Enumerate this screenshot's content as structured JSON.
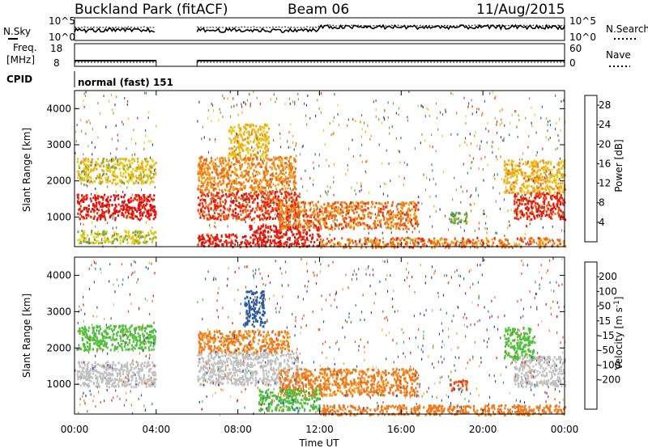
{
  "header": {
    "title": "Buckland Park (fitACF)",
    "beam": "Beam 06",
    "date": "11/Aug/2015"
  },
  "noise_panel": {
    "left_label": "N.Sky",
    "left_ticks": [
      "10^5",
      "10^0"
    ],
    "right_ticks": [
      "10^5",
      "10^0"
    ],
    "right_label": "N.Search"
  },
  "freq_panel": {
    "label_top": "Freq.",
    "label_unit": "[MHz]",
    "left_ticks": [
      "18",
      "8"
    ],
    "right_ticks": [
      "60",
      "0"
    ],
    "right_label": "Nave"
  },
  "cpid": {
    "label": "CPID",
    "value": "normal (fast) 151"
  },
  "x_axis": {
    "title": "Time UT",
    "ticks": [
      "00:00",
      "04:00",
      "08:00",
      "12:00",
      "16:00",
      "20:00",
      "00:00"
    ],
    "range_hours": [
      0,
      24
    ]
  },
  "chart_data": [
    {
      "type": "heatmap",
      "title": "",
      "ylabel": "Slant Range [km]",
      "xlabel": "",
      "y_ticks": [
        "1000",
        "2000",
        "3000",
        "4000"
      ],
      "ylim": [
        180,
        4500
      ],
      "xlim_hours": [
        0,
        24
      ],
      "data_gap_hours": [
        4.0,
        6.0
      ],
      "colorbar": {
        "label": "Power [dB]",
        "ticks": [
          "4",
          "8",
          "12",
          "16",
          "20",
          "24",
          "28"
        ],
        "range": [
          0,
          30
        ],
        "colors": [
          "#0a1bd6",
          "#24409c",
          "#2f6e8a",
          "#3f8f63",
          "#7faa3c",
          "#e8cc14",
          "#f2a31c",
          "#ef6a14",
          "#e82a10",
          "#e00d0d"
        ]
      },
      "regions": [
        {
          "t0": 0.1,
          "t1": 3.95,
          "r0": 950,
          "r1": 1650,
          "value": 28
        },
        {
          "t0": 0.1,
          "t1": 3.95,
          "r0": 1950,
          "r1": 2650,
          "value": 17
        },
        {
          "t0": 0.1,
          "t1": 3.95,
          "r0": 300,
          "r1": 650,
          "value": 15
        },
        {
          "t0": 6.0,
          "t1": 11.0,
          "r0": 950,
          "r1": 1750,
          "value": 25
        },
        {
          "t0": 6.0,
          "t1": 10.8,
          "r0": 1750,
          "r1": 2700,
          "value": 21
        },
        {
          "t0": 7.5,
          "t1": 9.5,
          "r0": 2700,
          "r1": 3600,
          "value": 18
        },
        {
          "t0": 6.0,
          "t1": 8.5,
          "r0": 200,
          "r1": 550,
          "value": 27
        },
        {
          "t0": 8.5,
          "t1": 12.0,
          "r0": 200,
          "r1": 800,
          "value": 27
        },
        {
          "t0": 10.0,
          "t1": 16.8,
          "r0": 700,
          "r1": 1450,
          "value": 22
        },
        {
          "t0": 12.0,
          "t1": 24.0,
          "r0": 180,
          "r1": 450,
          "value": 22
        },
        {
          "t0": 18.3,
          "t1": 19.2,
          "r0": 850,
          "r1": 1150,
          "value": 13
        },
        {
          "t0": 21.5,
          "t1": 24.0,
          "r0": 950,
          "r1": 1700,
          "value": 26
        },
        {
          "t0": 21.0,
          "t1": 24.0,
          "r0": 1700,
          "r1": 2600,
          "value": 19
        }
      ]
    },
    {
      "type": "heatmap",
      "title": "",
      "ylabel": "Slant Range [km]",
      "xlabel": "Time UT",
      "y_ticks": [
        "1000",
        "2000",
        "3000",
        "4000"
      ],
      "ylim": [
        180,
        4500
      ],
      "xlim_hours": [
        0,
        24
      ],
      "data_gap_hours": [
        4.0,
        6.0
      ],
      "colorbar": {
        "label": "Velocity [m s^-1]",
        "ticks": [
          "200",
          "100",
          "50",
          "15",
          "-15",
          "-50",
          "-100",
          "-200"
        ],
        "colors": [
          "#1a32c8",
          "#2c5aa0",
          "#2e8c74",
          "#52c03c",
          "#c0c0c0",
          "#c0c0c0",
          "#f0a830",
          "#f07818",
          "#ea4814",
          "#e01a10"
        ]
      },
      "regions": [
        {
          "t0": 0.1,
          "t1": 3.95,
          "r0": 950,
          "r1": 1650,
          "value": 0
        },
        {
          "t0": 0.1,
          "t1": 3.95,
          "r0": 1950,
          "r1": 2650,
          "value": 30
        },
        {
          "t0": 6.0,
          "t1": 11.0,
          "r0": 1000,
          "r1": 1900,
          "value": 0
        },
        {
          "t0": 6.0,
          "t1": 10.5,
          "r0": 1900,
          "r1": 2500,
          "value": -60
        },
        {
          "t0": 8.3,
          "t1": 9.3,
          "r0": 2600,
          "r1": 3600,
          "value": 150
        },
        {
          "t0": 10.0,
          "t1": 16.8,
          "r0": 700,
          "r1": 1450,
          "value": -60
        },
        {
          "t0": 9.0,
          "t1": 12.0,
          "r0": 300,
          "r1": 900,
          "value": 40
        },
        {
          "t0": 12.0,
          "t1": 24.0,
          "r0": 180,
          "r1": 450,
          "value": -80
        },
        {
          "t0": 18.3,
          "t1": 19.2,
          "r0": 850,
          "r1": 1150,
          "value": -110
        },
        {
          "t0": 21.5,
          "t1": 24.0,
          "r0": 950,
          "r1": 1800,
          "value": 0
        },
        {
          "t0": 21.0,
          "t1": 22.5,
          "r0": 1700,
          "r1": 2600,
          "value": 30
        }
      ]
    }
  ]
}
